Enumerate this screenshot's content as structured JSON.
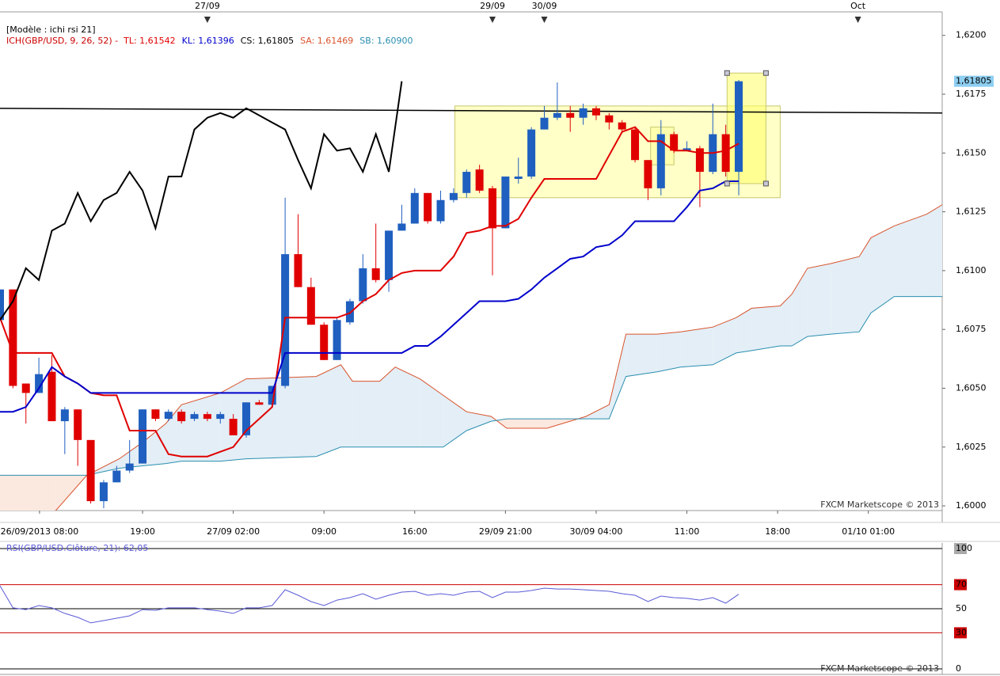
{
  "chart_data": [
    {
      "type": "candlestick",
      "title": "[Modèle : ichi rsi 21]",
      "indicator_legend": [
        {
          "text": "ICH(GBP/USD, 9, 26, 52) -",
          "color": "#cc0000"
        },
        {
          "text": "TL: 1,61542",
          "color": "#e00000"
        },
        {
          "text": "KL: 1,61396",
          "color": "#0000cc"
        },
        {
          "text": "CS: 1,61805",
          "color": "#000000"
        },
        {
          "text": "SA: 1,61469",
          "color": "#d9532c"
        },
        {
          "text": "SB: 1,60900",
          "color": "#2a8fb0"
        }
      ],
      "watermark": "FXCM Marketscope © 2013",
      "up_color": "#1f5fbf",
      "down_color": "#e00000",
      "open": [
        1.6079,
        1.6092,
        1.6052,
        1.6048,
        1.6057,
        1.6036,
        1.6041,
        1.6028,
        1.6002,
        1.601,
        1.6015,
        1.6018,
        1.6041,
        1.6037,
        1.604,
        1.6037,
        1.6039,
        1.6037,
        1.6037,
        1.603,
        1.6044,
        1.6043,
        1.6051,
        1.6107,
        1.6093,
        1.6077,
        1.6062,
        1.6078,
        1.6087,
        1.6101,
        1.6096,
        1.6117,
        1.612,
        1.6133,
        1.6121,
        1.613,
        1.6133,
        1.6143,
        1.6135,
        1.6118,
        1.6139,
        1.614,
        1.616,
        1.6165,
        1.6167,
        1.6165,
        1.6169,
        1.6166,
        1.6163,
        1.616,
        1.6147,
        1.6135,
        1.6158,
        1.6151,
        1.6152,
        1.6142,
        1.6158,
        1.6142
      ],
      "high": [
        1.6092,
        1.6092,
        1.6052,
        1.6063,
        1.6064,
        1.6042,
        1.6041,
        1.6028,
        1.6011,
        1.6017,
        1.6028,
        1.6041,
        1.6041,
        1.6041,
        1.6041,
        1.604,
        1.604,
        1.604,
        1.6039,
        1.6044,
        1.6045,
        1.6051,
        1.6131,
        1.6124,
        1.6097,
        1.6078,
        1.608,
        1.6088,
        1.6107,
        1.612,
        1.6117,
        1.6128,
        1.6135,
        1.6133,
        1.6134,
        1.6135,
        1.6143,
        1.6145,
        1.6136,
        1.614,
        1.6148,
        1.6161,
        1.617,
        1.618,
        1.617,
        1.6171,
        1.617,
        1.6167,
        1.6164,
        1.6161,
        1.6147,
        1.6164,
        1.6159,
        1.6155,
        1.6153,
        1.6171,
        1.6162,
        1.6181
      ],
      "low": [
        1.6079,
        1.605,
        1.6035,
        1.6048,
        1.6036,
        1.6022,
        1.6017,
        1.6001,
        1.5999,
        1.601,
        1.6014,
        1.6018,
        1.6036,
        1.6036,
        1.6035,
        1.6036,
        1.6036,
        1.6035,
        1.603,
        1.6029,
        1.6043,
        1.6042,
        1.605,
        1.6093,
        1.6077,
        1.6062,
        1.6062,
        1.6077,
        1.6086,
        1.6095,
        1.6091,
        1.6117,
        1.612,
        1.612,
        1.612,
        1.6129,
        1.6131,
        1.6133,
        1.6098,
        1.6118,
        1.6137,
        1.6139,
        1.616,
        1.6164,
        1.6159,
        1.6162,
        1.6164,
        1.616,
        1.6159,
        1.6146,
        1.613,
        1.6132,
        1.615,
        1.6151,
        1.6127,
        1.6141,
        1.614,
        1.6132
      ],
      "close": [
        1.6092,
        1.6051,
        1.6048,
        1.6056,
        1.6036,
        1.6041,
        1.6028,
        1.6002,
        1.601,
        1.6015,
        1.6018,
        1.6041,
        1.6037,
        1.604,
        1.6036,
        1.6039,
        1.6037,
        1.6039,
        1.603,
        1.6044,
        1.6043,
        1.6051,
        1.6107,
        1.6093,
        1.6077,
        1.6062,
        1.6079,
        1.6087,
        1.6101,
        1.6096,
        1.6117,
        1.612,
        1.6133,
        1.6121,
        1.613,
        1.6133,
        1.6142,
        1.6134,
        1.6118,
        1.614,
        1.614,
        1.616,
        1.6165,
        1.6167,
        1.6165,
        1.6169,
        1.6166,
        1.6163,
        1.616,
        1.6147,
        1.6135,
        1.6158,
        1.6151,
        1.6152,
        1.6142,
        1.6158,
        1.6142,
        1.61805
      ],
      "lines": [
        {
          "color": "#e00000",
          "values": [
            1.608,
            1.6065,
            1.6065,
            1.6065,
            1.6065,
            1.6055,
            1.6052,
            1.6048,
            1.6047,
            1.6047,
            1.6032,
            1.6032,
            1.6032,
            1.6022,
            1.6021,
            1.6021,
            1.6021,
            1.6023,
            1.6025,
            1.6032,
            1.6037,
            1.6042,
            1.608,
            1.608,
            1.608,
            1.608,
            1.608,
            1.6082,
            1.6087,
            1.609,
            1.6096,
            1.6099,
            1.61,
            1.61,
            1.61,
            1.6106,
            1.6116,
            1.6117,
            1.6119,
            1.6119,
            1.6122,
            1.6131,
            1.6139,
            1.6139,
            1.6139,
            1.6139,
            1.6139,
            1.6149,
            1.6159,
            1.6161,
            1.6155,
            1.6155,
            1.6151,
            1.6151,
            1.615,
            1.615,
            1.6151,
            1.6154
          ]
        },
        {
          "color": "#0000cc",
          "values": [
            1.604,
            1.604,
            1.6042,
            1.605,
            1.6059,
            1.6055,
            1.6052,
            1.6048,
            1.6048,
            1.6048,
            1.6048,
            1.6048,
            1.6048,
            1.6048,
            1.6048,
            1.6048,
            1.6048,
            1.6048,
            1.6048,
            1.6048,
            1.6048,
            1.6048,
            1.6065,
            1.6065,
            1.6065,
            1.6065,
            1.6065,
            1.6065,
            1.6065,
            1.6065,
            1.6065,
            1.6065,
            1.6068,
            1.6068,
            1.6072,
            1.6077,
            1.6082,
            1.6087,
            1.6087,
            1.6087,
            1.6088,
            1.6092,
            1.6097,
            1.6101,
            1.6105,
            1.6106,
            1.611,
            1.6111,
            1.6115,
            1.6121,
            1.6121,
            1.6121,
            1.6121,
            1.6127,
            1.6134,
            1.6135,
            1.6138,
            1.6138
          ]
        },
        {
          "color": "#000000",
          "values": [
            1.6079,
            1.6087,
            1.6101,
            1.6096,
            1.6117,
            1.612,
            1.6133,
            1.6121,
            1.613,
            1.6133,
            1.6142,
            1.6134,
            1.6118,
            1.614,
            1.614,
            1.616,
            1.6165,
            1.6167,
            1.6165,
            1.6169,
            1.6166,
            1.6163,
            1.616,
            1.6147,
            1.6135,
            1.6158,
            1.6151,
            1.6152,
            1.6142,
            1.6158,
            1.6142,
            1.61805
          ]
        }
      ],
      "cloud": {
        "x": [
          0,
          4.3,
          6.7,
          9.2,
          11,
          12.8,
          14,
          17,
          19,
          24.4,
          26.3,
          27.2,
          29.3,
          30.5,
          32.4,
          34.2,
          36,
          37.9,
          39.1,
          42.2,
          45.2,
          47,
          48.3,
          50.7,
          52.5,
          55,
          56.8,
          58,
          60.2,
          61.1,
          62.3,
          64.1,
          66.3,
          67.2,
          69,
          71.5,
          72.7
        ],
        "a": {
          "color": "#d9532c",
          "values": [
            1.5988,
            1.5998,
            1.6013,
            1.602,
            1.6027,
            1.6035,
            1.6043,
            1.6048,
            1.6054,
            1.6055,
            1.606,
            1.6053,
            1.6053,
            1.6059,
            1.6054,
            1.6047,
            1.604,
            1.6038,
            1.6033,
            1.6033,
            1.6038,
            1.6043,
            1.6073,
            1.6073,
            1.6074,
            1.6076,
            1.608,
            1.6084,
            1.6085,
            1.609,
            1.6101,
            1.6103,
            1.6106,
            1.6114,
            1.6119,
            1.6124,
            1.6128
          ]
        },
        "b": {
          "color": "#2a8fb0",
          "values": [
            1.6013,
            1.6013,
            1.6013,
            1.6016,
            1.6017,
            1.6018,
            1.6019,
            1.6019,
            1.602,
            1.6021,
            1.6025,
            1.6025,
            1.6025,
            1.6025,
            1.6025,
            1.6025,
            1.6032,
            1.6036,
            1.6037,
            1.6037,
            1.6037,
            1.6037,
            1.6055,
            1.6057,
            1.6059,
            1.606,
            1.6065,
            1.6066,
            1.6068,
            1.6068,
            1.6072,
            1.6073,
            1.6074,
            1.6082,
            1.6089,
            1.6089,
            1.6089
          ]
        },
        "fill_up": "#e3eef6",
        "fill_down": "#fbe8df"
      },
      "trendlines": [
        {
          "x": [
            0,
            72.7
          ],
          "y": [
            1.6169,
            1.6167
          ],
          "color": "#000000"
        }
      ],
      "rectangles": [
        {
          "x": [
            35.1,
            60.2
          ],
          "y": [
            1.6131,
            1.617
          ],
          "color": "#ffff99",
          "selected": false
        },
        {
          "x": [
            50.2,
            52.0
          ],
          "y": [
            1.6145,
            1.6161
          ],
          "color": "#ffff99",
          "selected": false
        },
        {
          "x": [
            56.1,
            59.1
          ],
          "y": [
            1.6137,
            1.6184
          ],
          "color": "#ffff66",
          "selected": true
        }
      ],
      "last_price": {
        "value": 1.61805,
        "label": "1,61805"
      },
      "xlim": [
        0,
        72.7
      ],
      "ylim": [
        1.5998,
        1.621
      ],
      "yticks": [
        {
          "value": 1.6,
          "label": "1,6000"
        },
        {
          "value": 1.6025,
          "label": "1,6025"
        },
        {
          "value": 1.605,
          "label": "1,6050"
        },
        {
          "value": 1.6075,
          "label": "1,6075"
        },
        {
          "value": 1.61,
          "label": "1,6100"
        },
        {
          "value": 1.6125,
          "label": "1,6125"
        },
        {
          "value": 1.615,
          "label": "1,6150"
        },
        {
          "value": 1.6175,
          "label": "1,6175"
        },
        {
          "value": 1.62,
          "label": "1,6200"
        }
      ],
      "xticks": [
        {
          "value": 3.05,
          "label": "26/09/2013 08:00"
        },
        {
          "value": 11,
          "label": "19:00"
        },
        {
          "value": 18,
          "label": "27/09 02:00"
        },
        {
          "value": 25,
          "label": "09:00"
        },
        {
          "value": 32,
          "label": "16:00"
        },
        {
          "value": 39,
          "label": "29/09 21:00"
        },
        {
          "value": 46,
          "label": "30/09 04:00"
        },
        {
          "value": 53,
          "label": "11:00"
        },
        {
          "value": 60,
          "label": "18:00"
        },
        {
          "value": 67,
          "label": "01/10 01:00"
        }
      ],
      "top_ticks": [
        {
          "value": 16,
          "label": "27/09"
        },
        {
          "value": 38,
          "label": "29/09"
        },
        {
          "value": 42,
          "label": "30/09"
        },
        {
          "value": 66.2,
          "label": "Oct"
        }
      ]
    },
    {
      "type": "line",
      "title": "RSI(GBP/USD.Clôture, 21): 62,05",
      "watermark": "FXCM Marketscope © 2013",
      "series": [
        {
          "color": "#5a5ad6",
          "values": [
            69.1,
            50.7,
            49.3,
            52.6,
            50.7,
            46.1,
            42.8,
            38.2,
            40.1,
            42.1,
            44.1,
            49.3,
            48.7,
            50.7,
            50.7,
            50.7,
            49.3,
            48.0,
            46.1,
            50.7,
            50.7,
            52.6,
            65.8,
            61.2,
            55.9,
            52.6,
            57.2,
            59.2,
            62.5,
            57.9,
            61.2,
            63.8,
            64.5,
            61.2,
            62.5,
            61.2,
            63.8,
            64.5,
            59.2,
            63.8,
            63.8,
            65.1,
            67.1,
            66.4,
            66.4,
            65.8,
            65.1,
            64.5,
            62.5,
            61.2,
            55.9,
            60.5,
            59.2,
            58.6,
            57.2,
            59.2,
            54.6,
            62.05
          ]
        }
      ],
      "xlim": [
        0,
        72.7
      ],
      "ylim": [
        0,
        100
      ],
      "yticks": [
        0,
        30,
        50,
        70,
        100
      ],
      "level_colors": [
        "#000000",
        "#cc0000",
        "#000000",
        "#cc0000",
        "#000000"
      ]
    }
  ]
}
